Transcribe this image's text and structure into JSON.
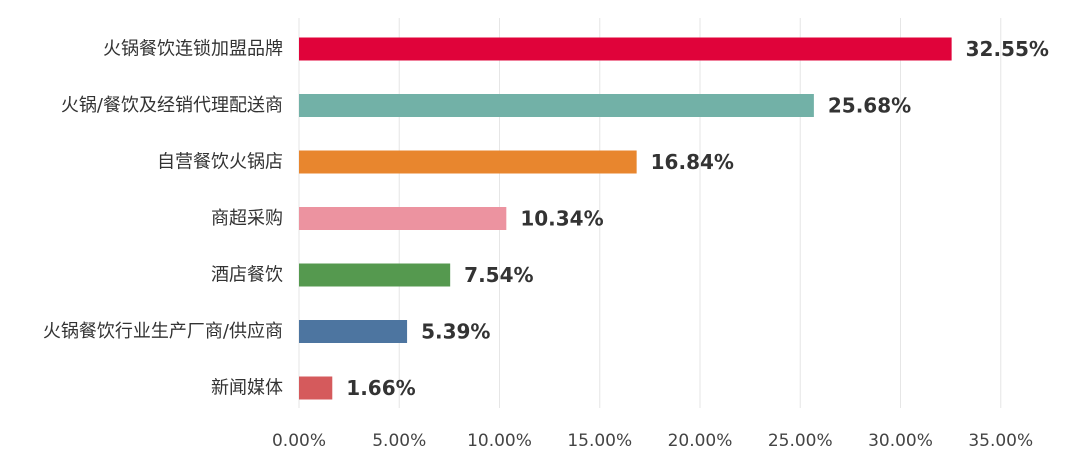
{
  "chart_data": {
    "type": "bar",
    "orientation": "horizontal",
    "categories": [
      "火锅餐饮连锁加盟品牌",
      "火锅/餐饮及经销代理配送商",
      "自营餐饮火锅店",
      "商超采购",
      "酒店餐饮",
      "火锅餐饮行业生产厂商/供应商",
      "新闻媒体"
    ],
    "values": [
      32.55,
      25.68,
      16.84,
      10.34,
      7.54,
      5.39,
      1.66
    ],
    "value_labels": [
      "32.55%",
      "25.68%",
      "16.84%",
      "10.34%",
      "7.54%",
      "5.39%",
      "1.66%"
    ],
    "colors": [
      "#e0033a",
      "#72b1a7",
      "#e8862e",
      "#ec93a0",
      "#55994f",
      "#4d75a0",
      "#d55a5c"
    ],
    "xlim": [
      0,
      35
    ],
    "xticks": [
      0,
      5,
      10,
      15,
      20,
      25,
      30,
      35
    ],
    "xtick_labels": [
      "0.00%",
      "5.00%",
      "10.00%",
      "15.00%",
      "20.00%",
      "25.00%",
      "30.00%",
      "35.00%"
    ],
    "grid": true
  }
}
